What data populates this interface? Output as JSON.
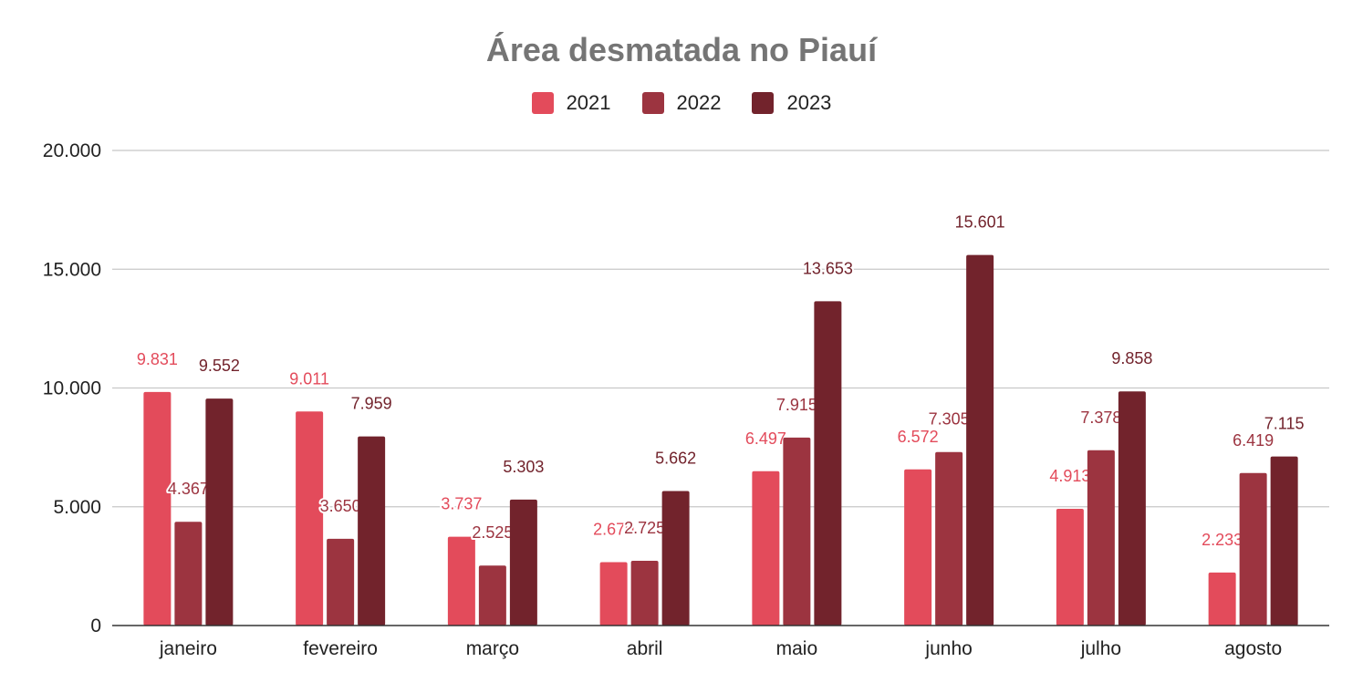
{
  "chart_data": {
    "type": "bar",
    "title": "Área desmatada no Piauí",
    "xlabel": "",
    "ylabel": "",
    "ylim": [
      0,
      20000
    ],
    "yticks": [
      0,
      5000,
      10000,
      15000,
      20000
    ],
    "ytick_labels": [
      "0",
      "5.000",
      "10.000",
      "15.000",
      "20.000"
    ],
    "grid": true,
    "legend_position": "top",
    "categories": [
      "janeiro",
      "fevereiro",
      "março",
      "abril",
      "maio",
      "junho",
      "julho",
      "agosto"
    ],
    "series": [
      {
        "name": "2021",
        "color": "#e34b5b",
        "values": [
          9831,
          9011,
          3737,
          2670,
          6497,
          6572,
          4913,
          2233
        ],
        "labels": [
          "9.831",
          "9.011",
          "3.737",
          "2.670",
          "6.497",
          "6.572",
          "4.913",
          "2.233"
        ]
      },
      {
        "name": "2022",
        "color": "#9c3440",
        "values": [
          4367,
          3650,
          2525,
          2725,
          7915,
          7305,
          7378,
          6419
        ],
        "labels": [
          "4.367",
          "3.650",
          "2.525",
          "2.725",
          "7.915",
          "7.305",
          "7.378",
          "6.419"
        ]
      },
      {
        "name": "2023",
        "color": "#72232c",
        "values": [
          9552,
          7959,
          5303,
          5662,
          13653,
          15601,
          9858,
          7115
        ],
        "labels": [
          "9.552",
          "7.959",
          "5.303",
          "5.662",
          "13.653",
          "15.601",
          "9.858",
          "7.115"
        ]
      }
    ]
  }
}
